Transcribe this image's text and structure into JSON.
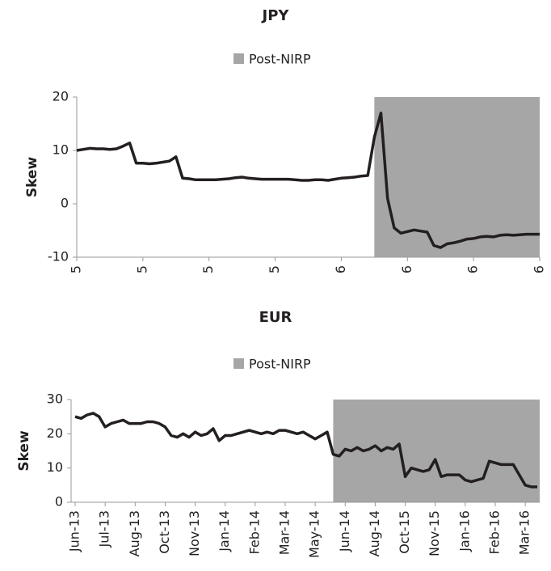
{
  "chart_data": [
    {
      "type": "line",
      "title": "JPY",
      "y_label": "Skew",
      "color": "#231f20",
      "span": {
        "name": "Post-NIRP",
        "color": "#a6a6a6",
        "from": 45,
        "to": 70
      },
      "categories": [
        "5",
        null,
        null,
        null,
        null,
        null,
        null,
        null,
        null,
        null,
        "5",
        null,
        null,
        null,
        null,
        null,
        null,
        null,
        null,
        null,
        "5",
        null,
        null,
        null,
        null,
        null,
        null,
        null,
        null,
        null,
        "5",
        null,
        null,
        null,
        null,
        null,
        null,
        null,
        null,
        null,
        "6",
        null,
        null,
        null,
        null,
        null,
        null,
        null,
        null,
        null,
        "6",
        null,
        null,
        null,
        null,
        null,
        null,
        null,
        null,
        null,
        "6",
        null,
        null,
        null,
        null,
        null,
        null,
        null,
        null,
        null,
        "6"
      ],
      "values": [
        10,
        10.2,
        10.4,
        10.3,
        10.3,
        10.2,
        10.3,
        10.8,
        11.4,
        7.6,
        7.6,
        7.5,
        7.6,
        7.8,
        8.0,
        8.8,
        4.8,
        4.7,
        4.5,
        4.5,
        4.5,
        4.5,
        4.6,
        4.7,
        4.9,
        5.0,
        4.8,
        4.7,
        4.6,
        4.6,
        4.6,
        4.6,
        4.6,
        4.5,
        4.4,
        4.4,
        4.5,
        4.5,
        4.4,
        4.6,
        4.8,
        4.9,
        5.0,
        5.2,
        5.3,
        12.5,
        17.0,
        1.0,
        -4.5,
        -5.5,
        -5.2,
        -4.9,
        -5.1,
        -5.3,
        -7.8,
        -8.2,
        -7.5,
        -7.3,
        -7.0,
        -6.6,
        -6.5,
        -6.2,
        -6.1,
        -6.2,
        -5.9,
        -5.8,
        -5.9,
        -5.8,
        -5.7,
        -5.7,
        -5.7
      ],
      "ylim": [
        -10,
        20
      ],
      "yticks": [
        -10,
        0,
        10,
        20
      ],
      "grid": false
    },
    {
      "type": "line",
      "title": "EUR",
      "y_label": "Skew",
      "color": "#231f20",
      "span": {
        "name": "Post-NIRP",
        "color": "#a6a6a6",
        "from": 43,
        "to": 77
      },
      "categories": [
        "Jun-13",
        null,
        null,
        null,
        null,
        "Jul-13",
        null,
        null,
        null,
        null,
        "Aug-13",
        null,
        null,
        null,
        null,
        "Oct-13",
        null,
        null,
        null,
        null,
        "Nov-13",
        null,
        null,
        null,
        null,
        "Jan-14",
        null,
        null,
        null,
        null,
        "Feb-14",
        null,
        null,
        null,
        null,
        "Mar-14",
        null,
        null,
        null,
        null,
        "May-14",
        null,
        null,
        null,
        null,
        "Jun-14",
        null,
        null,
        null,
        null,
        "Aug-14",
        null,
        null,
        null,
        null,
        "Oct-15",
        null,
        null,
        null,
        null,
        "Nov-15",
        null,
        null,
        null,
        null,
        "Jan-16",
        null,
        null,
        null,
        null,
        "Feb-16",
        null,
        null,
        null,
        null,
        "Mar-16",
        null,
        null
      ],
      "values": [
        25,
        24.5,
        25.5,
        26,
        25,
        22,
        23,
        23.5,
        24,
        23,
        23,
        23,
        23.5,
        23.5,
        23,
        22,
        19.5,
        19,
        20,
        19,
        20.5,
        19.5,
        20,
        21.5,
        18,
        19.5,
        19.5,
        20,
        20.5,
        21,
        20.5,
        20,
        20.5,
        20,
        21,
        21,
        20.5,
        20,
        20.5,
        19.5,
        18.5,
        19.5,
        20.5,
        14,
        13.5,
        15.5,
        15,
        16,
        15,
        15.5,
        16.5,
        15,
        16,
        15.5,
        17,
        7.5,
        10,
        9.5,
        9,
        9.5,
        12.5,
        7.5,
        8,
        8,
        8,
        6.5,
        6,
        6.5,
        7,
        12,
        11.5,
        11,
        11,
        11,
        8,
        5,
        4.5,
        4.5
      ],
      "ylim": [
        0,
        30
      ],
      "yticks": [
        0,
        10,
        20,
        30
      ],
      "grid": false
    }
  ]
}
